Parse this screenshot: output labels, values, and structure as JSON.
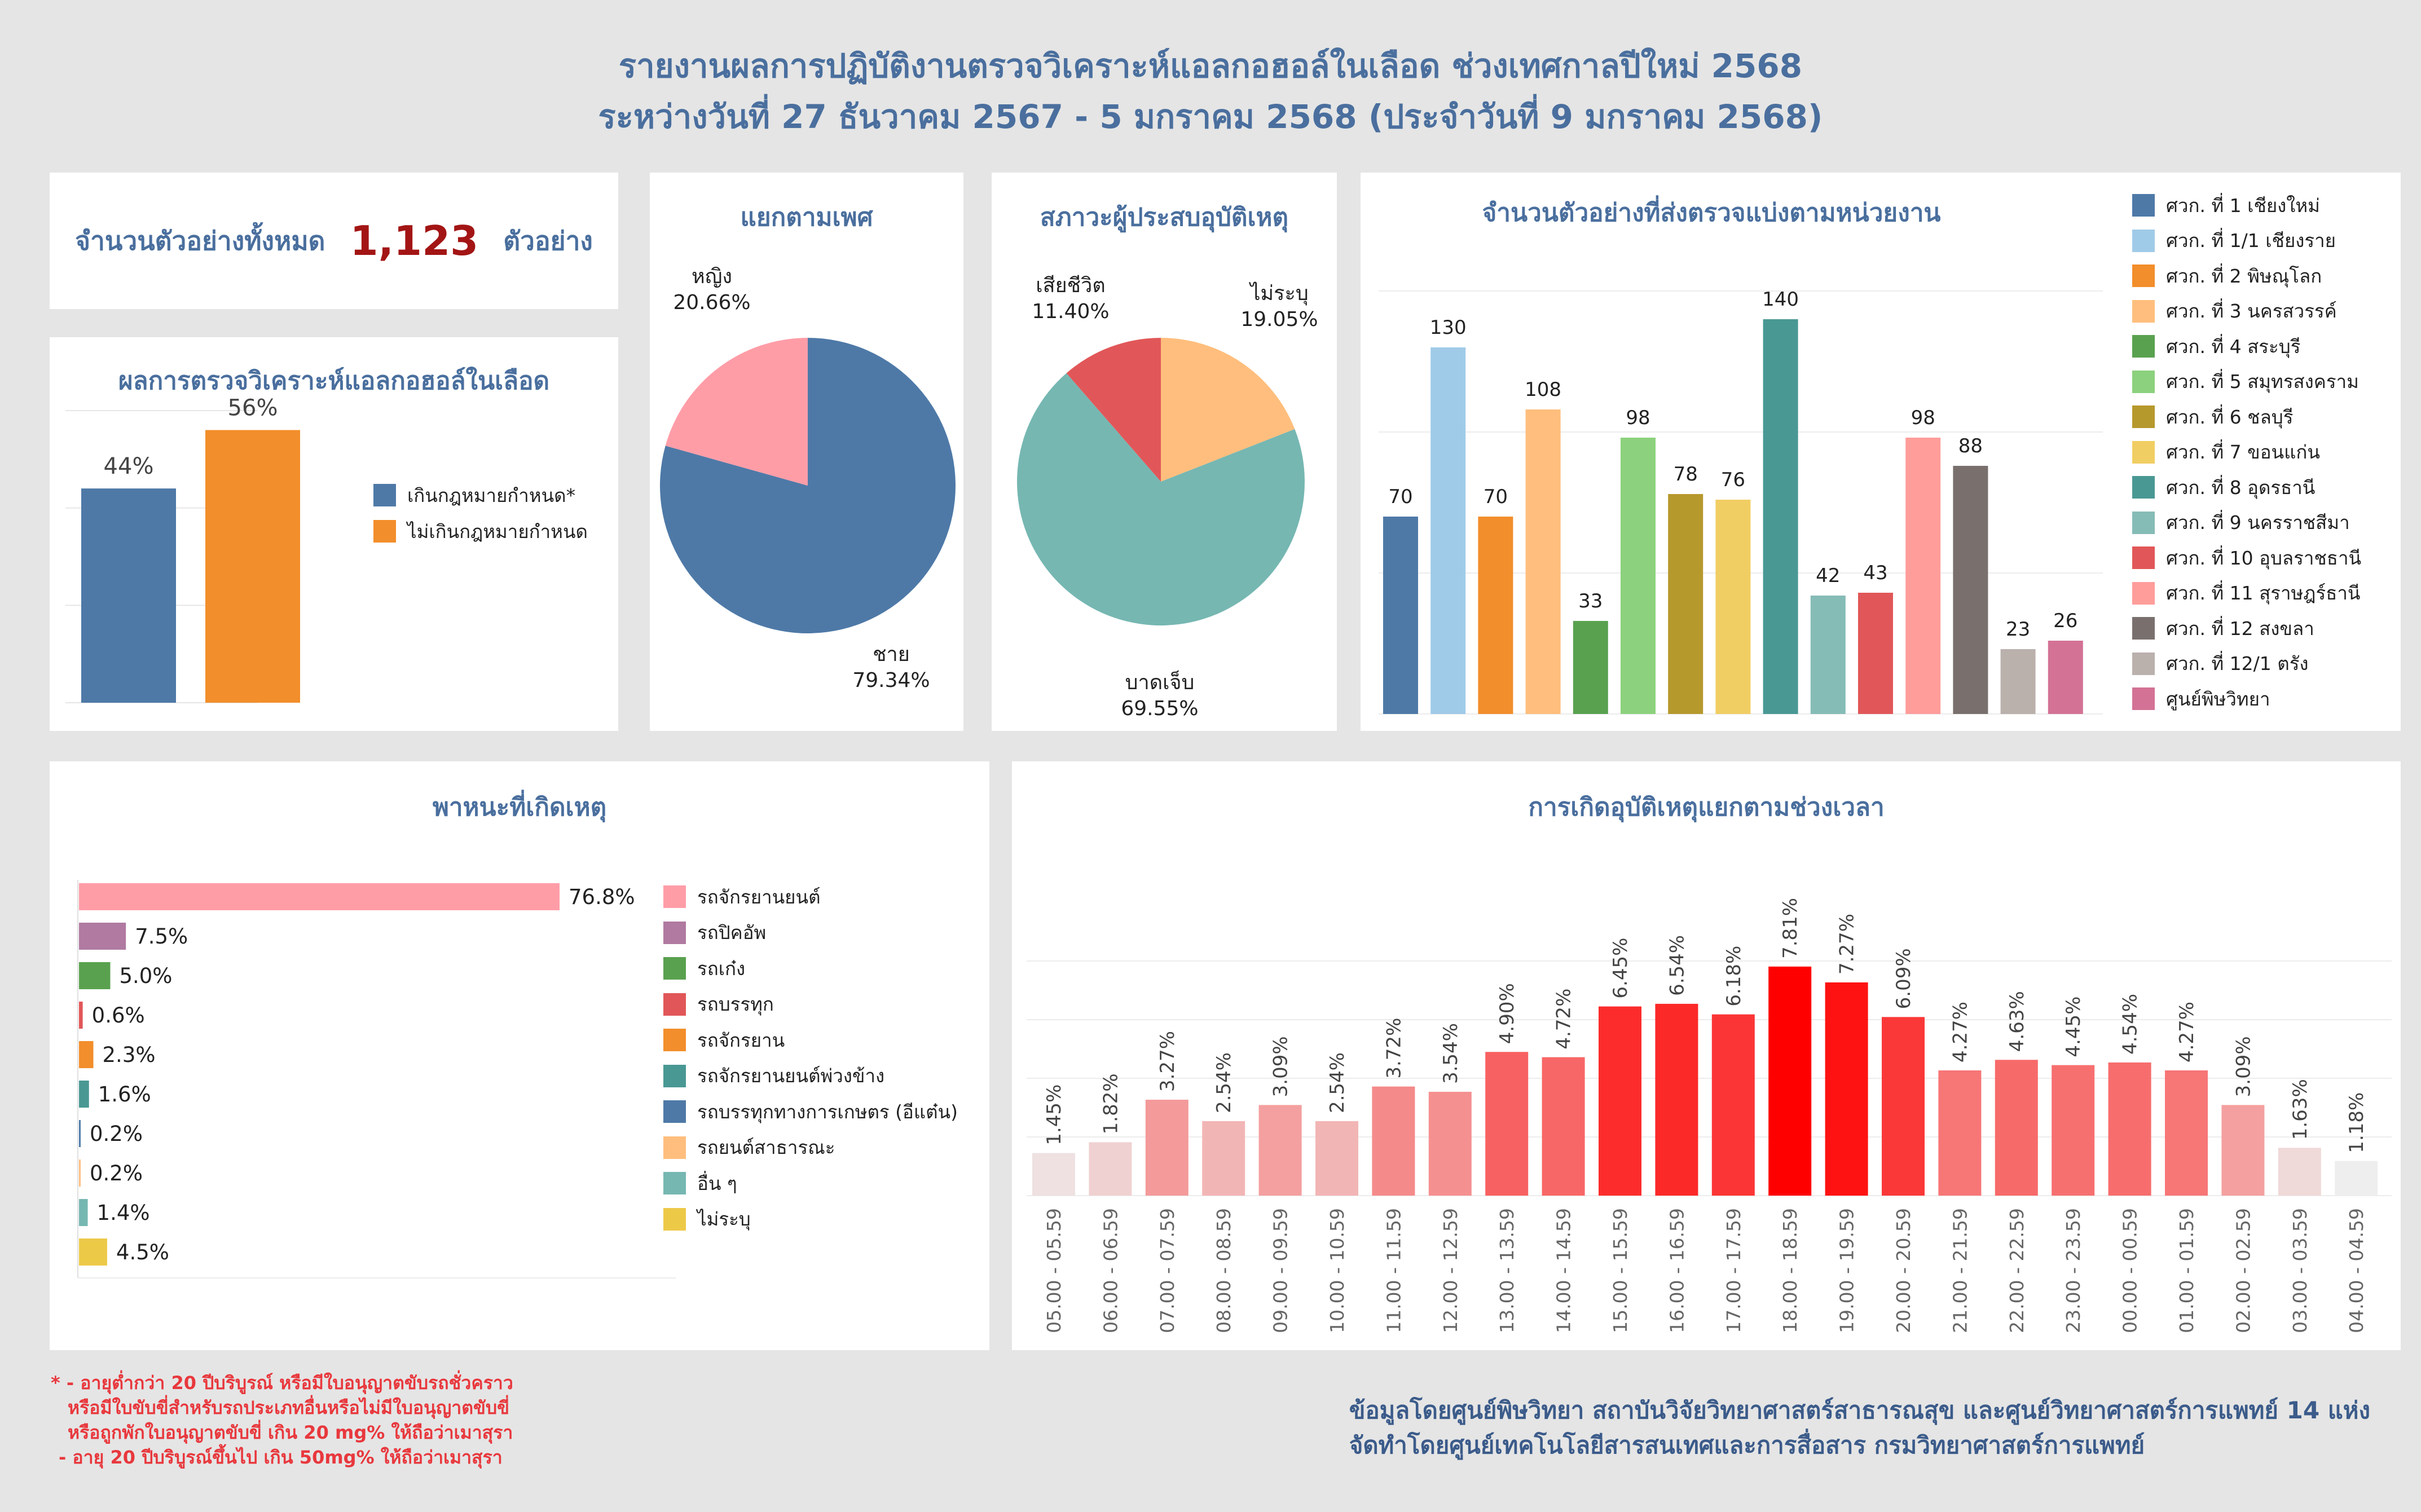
{
  "header": {
    "title_line1": "รายงานผลการปฏิบัติงานตรวจวิเคราะห์แอลกอฮอล์ในเลือด ช่วงเทศกาลปีใหม่ 2568",
    "title_line2": "ระหว่างวันที่ 27 ธันวาคม 2567 - 5 มกราคม 2568 (ประจำวันที่ 9 มกราคม 2568)"
  },
  "total": {
    "label": "จำนวนตัวอย่างทั้งหมด",
    "value": "1,123",
    "unit": "ตัวอย่าง"
  },
  "colors": {
    "title": "#4a6f9e",
    "accent": "#a31515",
    "footnote": "#e8383d"
  },
  "footnote": [
    "* - อายุต่ำกว่า 20 ปีบริบูรณ์ หรือมีใบอนุญาตขับรถชั่วคราว",
    "หรือมีใบขับขี่สำหรับรถประเภทอื่นหรือไม่มีใบอนุญาตขับขี่",
    "หรือถูกพักใบอนุญาตขับขี่ เกิน 20 mg% ให้ถือว่าเมาสุรา",
    "- อายุ 20 ปีบริบูรณ์ขึ้นไป เกิน 50mg% ให้ถือว่าเมาสุรา"
  ],
  "credits": [
    "ข้อมูลโดยศูนย์พิษวิทยา สถาบันวิจัยวิทยาศาสตร์สาธารณสุข และศูนย์วิทยาศาสตร์การแพทย์ 14 แห่ง",
    "จัดทำโดยศูนย์เทคโนโลยีสารสนเทศและการสื่อสาร กรมวิทยาศาสตร์การแพทย์"
  ],
  "chart_data": [
    {
      "id": "alcohol",
      "type": "bar",
      "title": "ผลการตรวจวิเคราะห์แอลกอฮอล์ในเลือด",
      "categories": [
        "เกินกฎหมายกำหนด*",
        "ไม่เกินกฎหมายกำหนด"
      ],
      "values": [
        44,
        56
      ],
      "labels": [
        "44%",
        "56%"
      ],
      "colors": [
        "#4e79a7",
        "#f28e2b"
      ],
      "ylim": [
        0,
        60
      ],
      "grid": true,
      "legend": "right"
    },
    {
      "id": "gender",
      "type": "pie",
      "title": "แยกตามเพศ",
      "slices": [
        {
          "name": "ชาย",
          "value": 79.34,
          "label": "79.34%",
          "color": "#4e79a7"
        },
        {
          "name": "หญิง",
          "value": 20.66,
          "label": "20.66%",
          "color": "#ff9da7"
        }
      ]
    },
    {
      "id": "status",
      "type": "pie",
      "title": "สภาวะผู้ประสบอุบัติเหตุ",
      "slices": [
        {
          "name": "ไม่ระบุ",
          "value": 19.05,
          "label": "19.05%",
          "color": "#ffbe7d"
        },
        {
          "name": "บาดเจ็บ",
          "value": 69.55,
          "label": "69.55%",
          "color": "#76b7b2"
        },
        {
          "name": "เสียชีวิต",
          "value": 11.4,
          "label": "11.40%",
          "color": "#e15759"
        }
      ]
    },
    {
      "id": "units",
      "type": "bar",
      "title": "จำนวนตัวอย่างที่ส่งตรวจแบ่งตามหน่วยงาน",
      "categories": [
        "ศวก. ที่ 1 เชียงใหม่",
        "ศวก. ที่ 1/1 เชียงราย",
        "ศวก. ที่ 2 พิษณุโลก",
        "ศวก. ที่ 3 นครสวรรค์",
        "ศวก. ที่ 4 สระบุรี",
        "ศวก. ที่ 5 สมุทรสงคราม",
        "ศวก. ที่ 6 ชลบุรี",
        "ศวก. ที่ 7 ขอนแก่น",
        "ศวก. ที่ 8 อุดรธานี",
        "ศวก. ที่ 9 นครราชสีมา",
        "ศวก. ที่ 10 อุบลราชธานี",
        "ศวก. ที่ 11 สุราษฎร์ธานี",
        "ศวก. ที่ 12 สงขลา",
        "ศวก. ที่ 12/1 ตรัง",
        "ศูนย์พิษวิทยา"
      ],
      "values": [
        70,
        130,
        70,
        108,
        33,
        98,
        78,
        76,
        140,
        42,
        43,
        98,
        88,
        23,
        26
      ],
      "colors": [
        "#4e79a7",
        "#a0cbe8",
        "#f28e2b",
        "#ffbe7d",
        "#59a14f",
        "#8cd17d",
        "#b6992d",
        "#f1ce63",
        "#499894",
        "#86bcb6",
        "#e15759",
        "#ff9d9a",
        "#79706e",
        "#bab0ac",
        "#d37295"
      ],
      "ylim": [
        0,
        150
      ],
      "grid": true,
      "legend": "right"
    },
    {
      "id": "vehicles",
      "type": "bar",
      "title": "พาหนะที่เกิดเหตุ",
      "orientation": "horizontal",
      "categories": [
        "รถจักรยานยนต์",
        "รถปิคอัพ",
        "รถเก๋ง",
        "รถบรรทุก",
        "รถจักรยาน",
        "รถจักรยานยนต์พ่วงข้าง",
        "รถบรรทุกทางการเกษตร (อีแต๋น)",
        "รถยนต์สาธารณะ",
        "อื่น ๆ",
        "ไม่ระบุ"
      ],
      "values": [
        76.8,
        7.5,
        5.0,
        0.6,
        2.3,
        1.6,
        0.2,
        0.2,
        1.4,
        4.5
      ],
      "labels": [
        "76.8%",
        "7.5%",
        "5.0%",
        "0.6%",
        "2.3%",
        "1.6%",
        "0.2%",
        "0.2%",
        "1.4%",
        "4.5%"
      ],
      "colors": [
        "#ff9da7",
        "#b07aa1",
        "#59a14f",
        "#e15759",
        "#f28e2b",
        "#499894",
        "#4e79a7",
        "#ffbe7d",
        "#76b7b2",
        "#edc948"
      ],
      "legend": "right"
    },
    {
      "id": "timeslots",
      "type": "bar",
      "title": "การเกิดอุบัติเหตุแยกตามช่วงเวลา",
      "categories": [
        "05.00 - 05.59",
        "06.00 - 06.59",
        "07.00 - 07.59",
        "08.00 - 08.59",
        "09.00 - 09.59",
        "10.00 - 10.59",
        "11.00 - 11.59",
        "12.00 - 12.59",
        "13.00 - 13.59",
        "14.00 - 14.59",
        "15.00 - 15.59",
        "16.00 - 16.59",
        "17.00 - 17.59",
        "18.00 - 18.59",
        "19.00 - 19.59",
        "20.00 - 20.59",
        "21.00 - 21.59",
        "22.00 - 22.59",
        "23.00 - 23.59",
        "00.00 - 00.59",
        "01.00 - 01.59",
        "02.00 - 02.59",
        "03.00 - 03.59",
        "04.00 - 04.59"
      ],
      "values": [
        1.45,
        1.82,
        3.27,
        2.54,
        3.09,
        2.54,
        3.72,
        3.54,
        4.9,
        4.72,
        6.45,
        6.54,
        6.18,
        7.81,
        7.27,
        6.09,
        4.27,
        4.63,
        4.45,
        4.54,
        4.27,
        3.09,
        1.63,
        1.18
      ],
      "labels": [
        "1.45%",
        "1.82%",
        "3.27%",
        "2.54%",
        "3.09%",
        "2.54%",
        "3.72%",
        "3.54%",
        "4.90%",
        "4.72%",
        "6.45%",
        "6.54%",
        "6.18%",
        "7.81%",
        "7.27%",
        "6.09%",
        "4.27%",
        "4.63%",
        "4.45%",
        "4.54%",
        "4.27%",
        "3.09%",
        "1.63%",
        "1.18%"
      ],
      "color_scale": [
        "#eeeeee",
        "#ff0000"
      ],
      "ylim": [
        0,
        8
      ],
      "grid": true
    }
  ]
}
